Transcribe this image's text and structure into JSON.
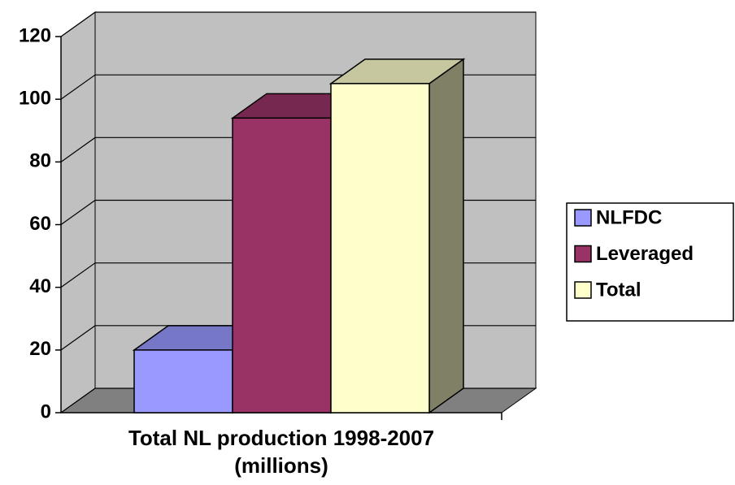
{
  "chart_data": {
    "type": "bar",
    "three_d": true,
    "categories": [
      "Total NL production 1998-2007 (millions)"
    ],
    "series": [
      {
        "name": "NLFDC",
        "color": "#9999ff",
        "values": [
          20
        ]
      },
      {
        "name": "Leveraged",
        "color": "#993366",
        "values": [
          94
        ]
      },
      {
        "name": "Total",
        "color": "#ffffcc",
        "values": [
          105
        ]
      }
    ],
    "ylim": [
      0,
      120
    ],
    "yticks": [
      0,
      20,
      40,
      60,
      80,
      100,
      120
    ],
    "grid": true,
    "legend": "right"
  }
}
